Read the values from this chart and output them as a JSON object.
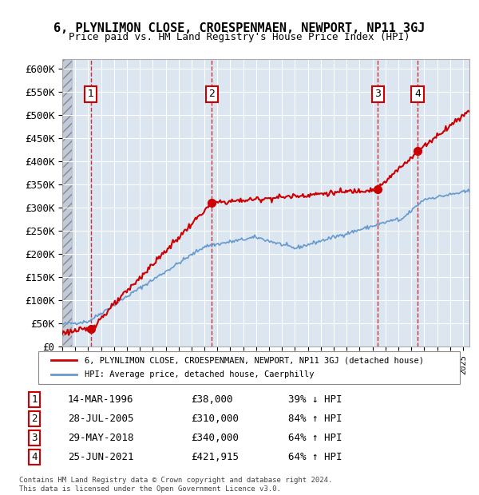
{
  "title": "6, PLYNLIMON CLOSE, CROESPENMAEN, NEWPORT, NP11 3GJ",
  "subtitle": "Price paid vs. HM Land Registry's House Price Index (HPI)",
  "ylabel": "",
  "ylim": [
    0,
    620000
  ],
  "yticks": [
    0,
    50000,
    100000,
    150000,
    200000,
    250000,
    300000,
    350000,
    400000,
    450000,
    500000,
    550000,
    600000
  ],
  "ytick_labels": [
    "£0",
    "£50K",
    "£100K",
    "£150K",
    "£200K",
    "£250K",
    "£300K",
    "£350K",
    "£400K",
    "£450K",
    "£500K",
    "£550K",
    "£600K"
  ],
  "xlim_start": 1994.0,
  "xlim_end": 2025.5,
  "sale_dates": [
    1996.2,
    2005.57,
    2018.41,
    2021.48
  ],
  "sale_prices": [
    38000,
    310000,
    340000,
    421915
  ],
  "sale_labels": [
    "1",
    "2",
    "3",
    "4"
  ],
  "sale_color": "#cc0000",
  "hpi_color": "#6699cc",
  "bg_color": "#dce6f1",
  "hatched_color": "#c0c0c0",
  "grid_color": "#ffffff",
  "legend_line1": "6, PLYNLIMON CLOSE, CROESPENMAEN, NEWPORT, NP11 3GJ (detached house)",
  "legend_line2": "HPI: Average price, detached house, Caerphilly",
  "table_data": [
    [
      "1",
      "14-MAR-1996",
      "£38,000",
      "39% ↓ HPI"
    ],
    [
      "2",
      "28-JUL-2005",
      "£310,000",
      "84% ↑ HPI"
    ],
    [
      "3",
      "29-MAY-2018",
      "£340,000",
      "64% ↑ HPI"
    ],
    [
      "4",
      "25-JUN-2021",
      "£421,915",
      "64% ↑ HPI"
    ]
  ],
  "footer": "Contains HM Land Registry data © Crown copyright and database right 2024.\nThis data is licensed under the Open Government Licence v3.0."
}
